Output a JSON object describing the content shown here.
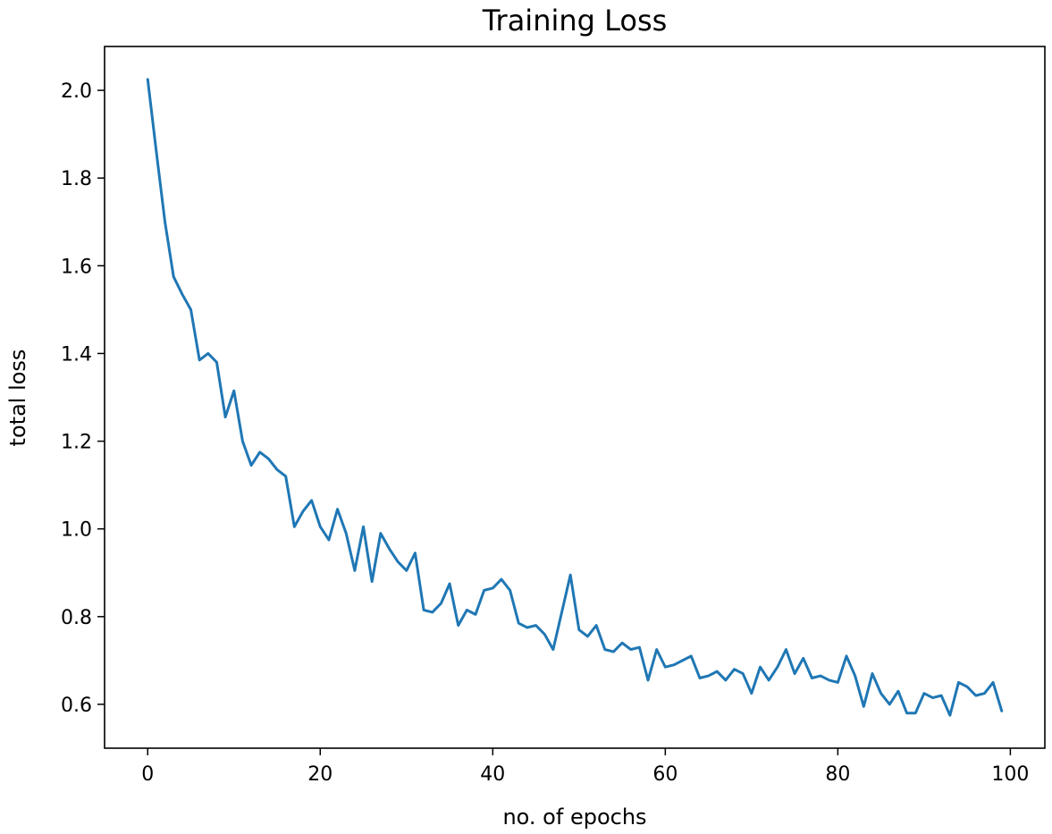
{
  "chart_data": {
    "type": "line",
    "title": "Training Loss",
    "xlabel": "no. of epochs",
    "ylabel": "total loss",
    "xlim": [
      -5,
      104
    ],
    "ylim": [
      0.5,
      2.1
    ],
    "xticks": [
      0,
      20,
      40,
      60,
      80,
      100
    ],
    "yticks": [
      0.6,
      0.8,
      1.0,
      1.2,
      1.4,
      1.6,
      1.8,
      2.0
    ],
    "xtick_labels": [
      "0",
      "20",
      "40",
      "60",
      "80",
      "100"
    ],
    "ytick_labels": [
      "0.6",
      "0.8",
      "1.0",
      "1.2",
      "1.4",
      "1.6",
      "1.8",
      "2.0"
    ],
    "grid": false,
    "series_color": "#1f77b4",
    "series": [
      {
        "values": [
          2.025,
          1.86,
          1.7,
          1.575,
          1.535,
          1.5,
          1.385,
          1.4,
          1.38,
          1.255,
          1.315,
          1.2,
          1.145,
          1.175,
          1.16,
          1.135,
          1.12,
          1.005,
          1.04,
          1.065,
          1.005,
          0.975,
          1.045,
          0.99,
          0.905,
          1.005,
          0.88,
          0.99,
          0.955,
          0.925,
          0.905,
          0.945,
          0.815,
          0.81,
          0.83,
          0.875,
          0.78,
          0.815,
          0.805,
          0.86,
          0.865,
          0.885,
          0.86,
          0.785,
          0.775,
          0.78,
          0.76,
          0.725,
          0.81,
          0.895,
          0.77,
          0.755,
          0.78,
          0.725,
          0.72,
          0.74,
          0.725,
          0.73,
          0.655,
          0.725,
          0.685,
          0.69,
          0.7,
          0.71,
          0.66,
          0.665,
          0.675,
          0.655,
          0.68,
          0.67,
          0.625,
          0.685,
          0.655,
          0.685,
          0.725,
          0.67,
          0.705,
          0.66,
          0.665,
          0.655,
          0.65,
          0.71,
          0.665,
          0.595,
          0.67,
          0.625,
          0.6,
          0.63,
          0.58,
          0.58,
          0.625,
          0.615,
          0.62,
          0.575,
          0.65,
          0.64,
          0.62,
          0.625,
          0.65,
          0.585
        ]
      }
    ]
  }
}
